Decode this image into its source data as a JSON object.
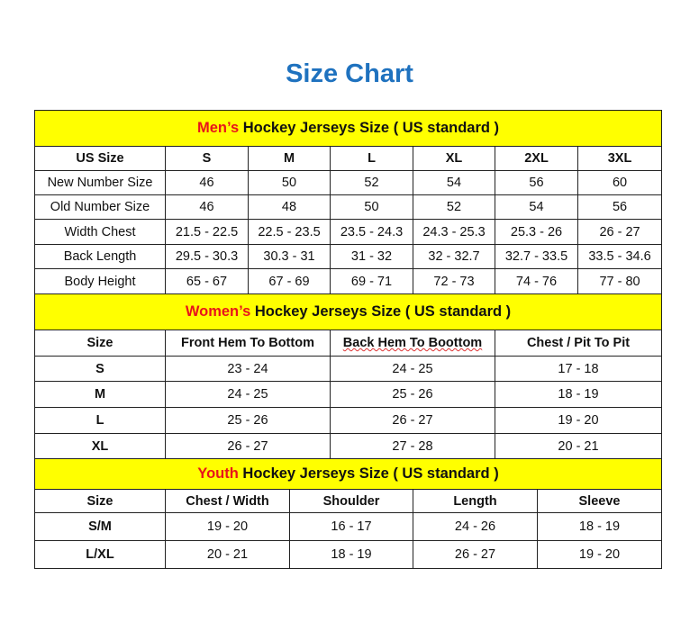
{
  "title": "Size Chart",
  "colors": {
    "title": "#1f72bf",
    "header_bg": "#ffff00",
    "accent": "#e8141b"
  },
  "mens": {
    "accent": "Men’s",
    "heading": " Hockey Jerseys Size ( US standard )",
    "columns": [
      "US Size",
      "S",
      "M",
      "L",
      "XL",
      "2XL",
      "3XL"
    ],
    "rows": [
      [
        "New Number Size",
        "46",
        "50",
        "52",
        "54",
        "56",
        "60"
      ],
      [
        "Old Number Size",
        "46",
        "48",
        "50",
        "52",
        "54",
        "56"
      ],
      [
        "Width Chest",
        "21.5 - 22.5",
        "22.5 - 23.5",
        "23.5 - 24.3",
        "24.3 - 25.3",
        "25.3 - 26",
        "26 - 27"
      ],
      [
        "Back Length",
        "29.5 - 30.3",
        "30.3 - 31",
        "31 - 32",
        "32 - 32.7",
        "32.7 - 33.5",
        "33.5 - 34.6"
      ],
      [
        "Body Height",
        "65 - 67",
        "67 - 69",
        "69 - 71",
        "72 - 73",
        "74 - 76",
        "77 - 80"
      ]
    ]
  },
  "womens": {
    "accent": "Women’s",
    "heading": " Hockey Jerseys Size ( US standard )",
    "columns": [
      "Size",
      "Front Hem To Bottom",
      "Back Hem To Boottom",
      "Chest / Pit To Pit"
    ],
    "rows": [
      [
        "S",
        "23 - 24",
        "24 - 25",
        "17 - 18"
      ],
      [
        "M",
        "24 - 25",
        "25 - 26",
        "18 - 19"
      ],
      [
        "L",
        "25 - 26",
        "26 - 27",
        "19 - 20"
      ],
      [
        "XL",
        "26 - 27",
        "27 - 28",
        "20 - 21"
      ]
    ]
  },
  "youth": {
    "accent": "Youth",
    "heading": " Hockey Jerseys Size ( US standard )",
    "columns": [
      "Size",
      "Chest / Width",
      "Shoulder",
      "Length",
      "Sleeve"
    ],
    "rows": [
      [
        "S/M",
        "19 - 20",
        "16 - 17",
        "24 - 26",
        "18 - 19"
      ],
      [
        "L/XL",
        "20 - 21",
        "18 - 19",
        "26 - 27",
        "19 - 20"
      ]
    ]
  }
}
